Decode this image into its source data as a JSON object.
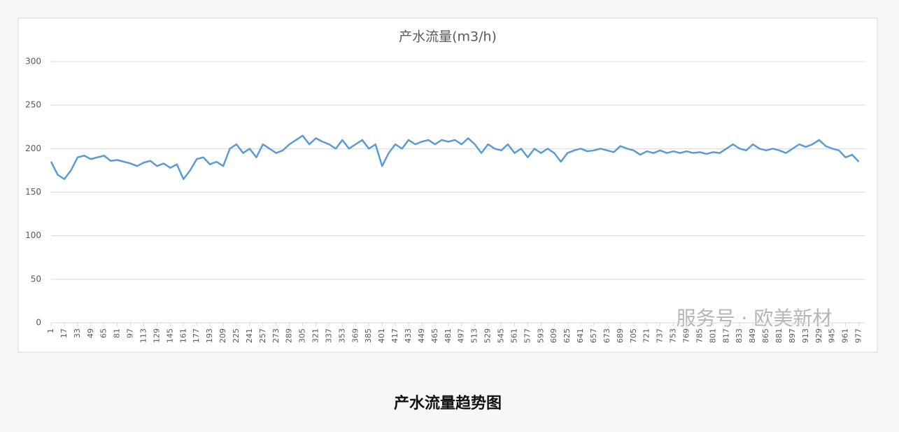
{
  "chart_data": {
    "type": "line",
    "title": "产水流量(m3/h)",
    "x": [
      1,
      9,
      17,
      25,
      33,
      41,
      49,
      57,
      65,
      73,
      81,
      89,
      97,
      105,
      113,
      121,
      129,
      137,
      145,
      153,
      161,
      169,
      177,
      185,
      193,
      201,
      209,
      217,
      225,
      233,
      241,
      249,
      257,
      265,
      273,
      281,
      289,
      297,
      305,
      313,
      321,
      329,
      337,
      345,
      353,
      361,
      369,
      377,
      385,
      393,
      401,
      409,
      417,
      425,
      433,
      441,
      449,
      457,
      465,
      473,
      481,
      489,
      497,
      505,
      513,
      521,
      529,
      537,
      545,
      553,
      561,
      569,
      577,
      585,
      593,
      601,
      609,
      617,
      625,
      633,
      641,
      649,
      657,
      665,
      673,
      681,
      689,
      697,
      705,
      713,
      721,
      729,
      737,
      745,
      753,
      761,
      769,
      777,
      785,
      793,
      801,
      809,
      817,
      825,
      833,
      841,
      849,
      857,
      865,
      873,
      881,
      889,
      897,
      905,
      913,
      921,
      929,
      937,
      945,
      953,
      961,
      969,
      977
    ],
    "series": [
      {
        "color": "#5b9bd5",
        "values": [
          185,
          170,
          165,
          175,
          190,
          192,
          188,
          190,
          192,
          186,
          187,
          185,
          183,
          180,
          184,
          186,
          180,
          183,
          178,
          182,
          165,
          175,
          188,
          190,
          182,
          185,
          180,
          200,
          205,
          195,
          200,
          190,
          205,
          200,
          195,
          198,
          205,
          210,
          215,
          205,
          212,
          208,
          205,
          200,
          210,
          200,
          205,
          210,
          200,
          205,
          180,
          195,
          205,
          200,
          210,
          205,
          208,
          210,
          205,
          210,
          208,
          210,
          205,
          212,
          205,
          195,
          205,
          200,
          198,
          205,
          195,
          200,
          190,
          200,
          195,
          200,
          195,
          185,
          195,
          198,
          200,
          197,
          198,
          200,
          198,
          196,
          203,
          200,
          198,
          193,
          197,
          195,
          198,
          195,
          197,
          195,
          197,
          195,
          196,
          194,
          196,
          195,
          200,
          205,
          200,
          198,
          205,
          200,
          198,
          200,
          198,
          195,
          200,
          205,
          202,
          205,
          210,
          203,
          200,
          198,
          190,
          193,
          185
        ]
      }
    ],
    "xlim": [
      1,
      985
    ],
    "xticks": [
      1,
      17,
      33,
      49,
      65,
      81,
      97,
      113,
      129,
      145,
      161,
      177,
      193,
      209,
      225,
      241,
      257,
      273,
      289,
      305,
      321,
      337,
      353,
      369,
      385,
      401,
      417,
      433,
      449,
      465,
      481,
      497,
      513,
      529,
      545,
      561,
      577,
      593,
      609,
      625,
      641,
      657,
      673,
      689,
      705,
      721,
      737,
      753,
      769,
      785,
      801,
      817,
      833,
      849,
      865,
      881,
      897,
      913,
      929,
      945,
      961,
      977
    ],
    "ylim": [
      0,
      300
    ],
    "yticks": [
      0,
      50,
      100,
      150,
      200,
      250,
      300
    ],
    "grid": true,
    "watermark": "服务号 · 欧美新材"
  },
  "caption": "产水流量趋势图"
}
